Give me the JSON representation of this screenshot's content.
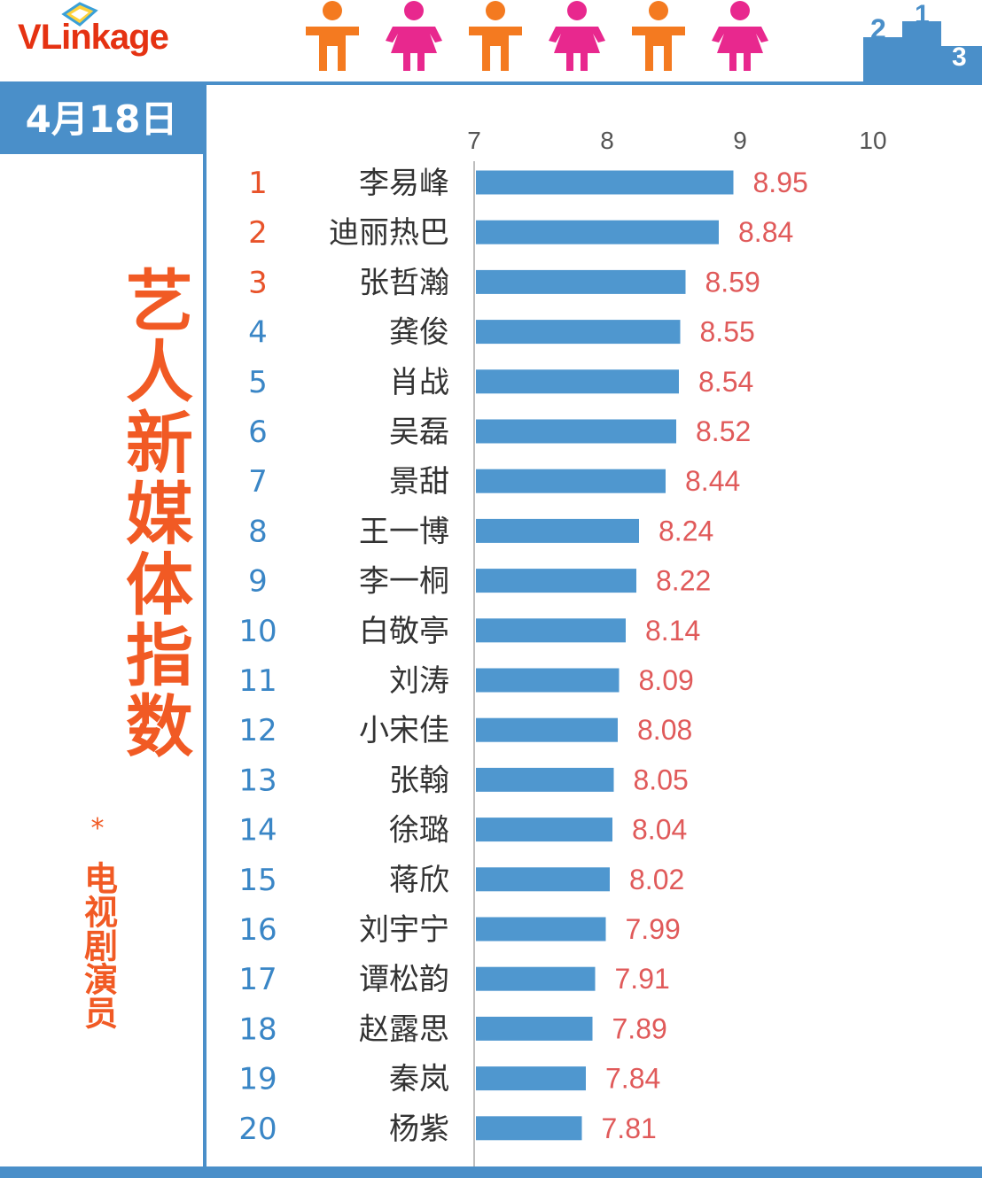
{
  "brand": {
    "logo_letter": "V",
    "logo_rest": "Linkage",
    "icons": [
      "logo-mark-icon",
      "person-male-icon",
      "person-female-icon",
      "podium-icon"
    ],
    "colors": {
      "accent_blue": "#4a8fc9",
      "title_orange": "#f15a24",
      "male": "#f47a20",
      "female": "#e8288e"
    }
  },
  "header": {
    "date": "4月18日"
  },
  "sidebar": {
    "title": "艺人新媒体指数",
    "star": "*",
    "subtitle": "电视剧演员"
  },
  "chart_data": {
    "type": "bar",
    "orientation": "horizontal",
    "x_ticks": [
      "7",
      "8",
      "9",
      "10"
    ],
    "xlim": [
      7,
      10
    ],
    "bar_color": "#4f97cf",
    "value_color": "#e05a5a",
    "rank_colors": {
      "top3": "#e8532a",
      "rest": "#3a86c6"
    },
    "ranks": [
      "1",
      "2",
      "3",
      "4",
      "5",
      "6",
      "7",
      "8",
      "9",
      "10",
      "11",
      "12",
      "13",
      "14",
      "15",
      "16",
      "17",
      "18",
      "19",
      "20"
    ],
    "categories": [
      "李易峰",
      "迪丽热巴",
      "张哲瀚",
      "龚俊",
      "肖战",
      "吴磊",
      "景甜",
      "王一博",
      "李一桐",
      "白敬亭",
      "刘涛",
      "小宋佳",
      "张翰",
      "徐璐",
      "蒋欣",
      "刘宇宁",
      "谭松韵",
      "赵露思",
      "秦岚",
      "杨紫"
    ],
    "values": [
      8.95,
      8.84,
      8.59,
      8.55,
      8.54,
      8.52,
      8.44,
      8.24,
      8.22,
      8.14,
      8.09,
      8.08,
      8.05,
      8.04,
      8.02,
      7.99,
      7.91,
      7.89,
      7.84,
      7.81
    ],
    "value_labels": [
      "8.95",
      "8.84",
      "8.59",
      "8.55",
      "8.54",
      "8.52",
      "8.44",
      "8.24",
      "8.22",
      "8.14",
      "8.09",
      "8.08",
      "8.05",
      "8.04",
      "8.02",
      "7.99",
      "7.91",
      "7.89",
      "7.84",
      "7.81"
    ],
    "grid": false,
    "legend": "none"
  }
}
